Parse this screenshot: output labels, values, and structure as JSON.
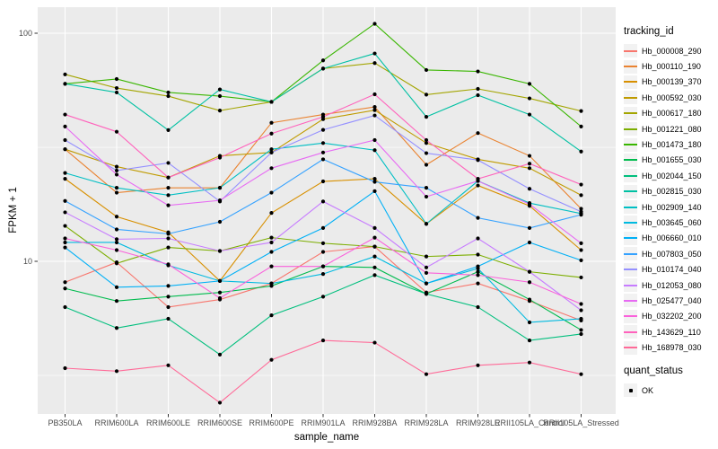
{
  "figure": {
    "y_axis_title": "FPKM + 1",
    "x_axis_title": "sample_name",
    "legend_title": "tracking_id",
    "quant_legend_title": "quant_status",
    "quant_legend_value": "OK"
  },
  "colors": {
    "panel_bg": "#EBEBEB",
    "grid": "#FFFFFF",
    "legend_key_bg": "#F2F2F2",
    "tick_label": "#4D4D4D",
    "tick_mark": "#333333",
    "point": "#000000"
  },
  "chart_data": {
    "type": "line",
    "title": "",
    "xlabel": "sample_name",
    "ylabel": "FPKM + 1",
    "y_scale": "log10",
    "ylim": [
      2.1,
      130
    ],
    "y_ticks": [
      100,
      10
    ],
    "y_minor_ticks": [
      31.6,
      3.16
    ],
    "grid": true,
    "legend_position": "right",
    "points": "black markers at every observation (quant_status OK)",
    "categories": [
      "PB350LA",
      "RRIM600LA",
      "RRIM600LE",
      "RRIM600SE",
      "RRIM600PE",
      "RRIM901LA",
      "RRIM928BA",
      "RRIM928LA",
      "RRIM928LE",
      "RRII105LA_Control",
      "RRII105LA_Stressed"
    ],
    "series": [
      {
        "name": "Hb_000008_290",
        "color": "#F8766D",
        "values": [
          8.1,
          9.9,
          6.3,
          6.8,
          8.0,
          11.0,
          11.6,
          7.3,
          8.0,
          6.7,
          5.5
        ]
      },
      {
        "name": "Hb_000110_190",
        "color": "#EA8331",
        "values": [
          31,
          20,
          21,
          21,
          40.5,
          44,
          47.5,
          26.5,
          36.5,
          29,
          17
        ]
      },
      {
        "name": "Hb_000139_370",
        "color": "#D89000",
        "values": [
          23,
          15.7,
          13.4,
          8.2,
          16.3,
          22.4,
          23,
          14.6,
          21.5,
          17.5,
          11.2
        ]
      },
      {
        "name": "Hb_000592_030",
        "color": "#C09B00",
        "values": [
          31,
          26,
          23.3,
          29,
          30,
          42,
          46,
          33,
          28,
          25.6,
          19.5
        ]
      },
      {
        "name": "Hb_000617_180",
        "color": "#A3A500",
        "values": [
          66,
          57.5,
          53,
          45.8,
          50,
          70,
          74,
          53.8,
          57,
          51.8,
          45.6
        ]
      },
      {
        "name": "Hb_001221_080",
        "color": "#7CAE00",
        "values": [
          14.3,
          9.8,
          11.5,
          11.1,
          12.7,
          12.0,
          11.6,
          10.5,
          10.7,
          9.0,
          8.5
        ]
      },
      {
        "name": "Hb_001473_180",
        "color": "#39B600",
        "values": [
          60,
          63,
          55,
          53,
          50,
          76,
          110,
          69,
          68,
          60,
          39
        ]
      },
      {
        "name": "Hb_001655_030",
        "color": "#00BB4E",
        "values": [
          7.6,
          6.7,
          7.0,
          7.3,
          7.8,
          9.5,
          9.4,
          7.2,
          9.0,
          6.8,
          5.0
        ]
      },
      {
        "name": "Hb_002044_150",
        "color": "#00BF7D",
        "values": [
          6.3,
          5.1,
          5.6,
          3.9,
          5.8,
          7.0,
          8.7,
          7.2,
          6.3,
          4.5,
          4.8
        ]
      },
      {
        "name": "Hb_002815_030",
        "color": "#00C1A3",
        "values": [
          60,
          55,
          37.6,
          56.7,
          50,
          70,
          81.5,
          43,
          53.5,
          44,
          30.3
        ]
      },
      {
        "name": "Hb_002909_140",
        "color": "#00BFC4",
        "values": [
          24.4,
          21,
          19.5,
          21,
          31,
          33,
          30.7,
          14.6,
          22.5,
          18,
          16.2
        ]
      },
      {
        "name": "Hb_003645_060",
        "color": "#00BAE0",
        "values": [
          12.1,
          12.1,
          9.6,
          8.2,
          8.0,
          8.8,
          10.5,
          8.0,
          9.3,
          5.4,
          5.6
        ]
      },
      {
        "name": "Hb_006660_010",
        "color": "#00B0F6",
        "values": [
          11.5,
          7.7,
          7.8,
          8.2,
          11.0,
          14.0,
          20.3,
          8.0,
          9.5,
          12.1,
          10.1
        ]
      },
      {
        "name": "Hb_007803_050",
        "color": "#35A2FF",
        "values": [
          18.4,
          13.8,
          13.2,
          14.9,
          20,
          28,
          22.3,
          21,
          15.5,
          14,
          16
        ]
      },
      {
        "name": "Hb_010174_040",
        "color": "#9590FF",
        "values": [
          34,
          25,
          27,
          18.3,
          30,
          37.7,
          43.6,
          29.8,
          27.8,
          20.8,
          16.5
        ]
      },
      {
        "name": "Hb_012053_080",
        "color": "#C77CFF",
        "values": [
          16.4,
          12.5,
          12.6,
          11.1,
          12.1,
          18.3,
          14.0,
          9.4,
          12.6,
          9.0,
          6.1
        ]
      },
      {
        "name": "Hb_025477_040",
        "color": "#E76BF3",
        "values": [
          39,
          24,
          17.6,
          18.5,
          25.6,
          30,
          34,
          19.2,
          22.5,
          17.8,
          12
        ]
      },
      {
        "name": "Hb_032202_200",
        "color": "#FA62DB",
        "values": [
          12.6,
          11.2,
          9.7,
          6.9,
          9.5,
          9.5,
          12.7,
          8.9,
          8.7,
          8.1,
          6.5
        ]
      },
      {
        "name": "Hb_143629_110",
        "color": "#FF62BC",
        "values": [
          44,
          37,
          23.3,
          28.5,
          36.3,
          43,
          54,
          34,
          23,
          26.8,
          21.7
        ]
      },
      {
        "name": "Hb_168978_030",
        "color": "#FF6A98",
        "values": [
          3.4,
          3.3,
          3.5,
          2.4,
          3.7,
          4.5,
          4.4,
          3.2,
          3.5,
          3.6,
          3.2
        ]
      }
    ]
  }
}
